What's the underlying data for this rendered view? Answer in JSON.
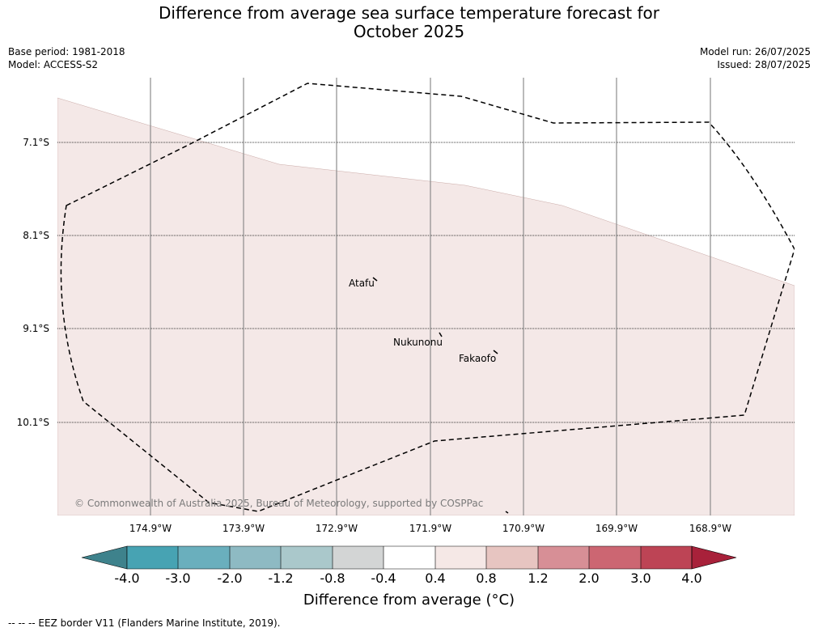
{
  "title": {
    "line1": "Difference from average sea surface temperature forecast for",
    "line2": "October 2025"
  },
  "meta": {
    "base_period": "Base period: 1981-2018",
    "model": "Model: ACCESS-S2",
    "model_run": "Model run: 26/07/2025",
    "issued": "Issued: 28/07/2025"
  },
  "map": {
    "lat_labels": [
      "7.1°S",
      "8.1°S",
      "9.1°S",
      "10.1°S"
    ],
    "lon_labels": [
      "174.9°W",
      "173.9°W",
      "172.9°W",
      "171.9°W",
      "170.9°W",
      "169.9°W",
      "168.9°W"
    ],
    "places": [
      "Atafu",
      "Nukunonu",
      "Fakaofo"
    ],
    "copyright": "© Commonwealth of Australia 2025, Bureau of Meteorology, supported by COSPPac",
    "anomaly_fill_color": "#f4e8e7",
    "anomaly_class": "0.4 to 0.8"
  },
  "colorbar": {
    "ticks": [
      "-4.0",
      "-3.0",
      "-2.0",
      "-1.2",
      "-0.8",
      "-0.4",
      "0.4",
      "0.8",
      "1.2",
      "2.0",
      "3.0",
      "4.0"
    ],
    "colors": [
      "#3e828c",
      "#47a3b3",
      "#6aafbd",
      "#8ebac3",
      "#aac8cb",
      "#d3d5d5",
      "#ffffff",
      "#f5e8e6",
      "#e7c5c1",
      "#d78f96",
      "#cc6672",
      "#bd4455",
      "#a8213a"
    ],
    "label": "Difference from average (°C)"
  },
  "footnote": "--  --  -- EEZ border V11 (Flanders Marine Institute, 2019)."
}
